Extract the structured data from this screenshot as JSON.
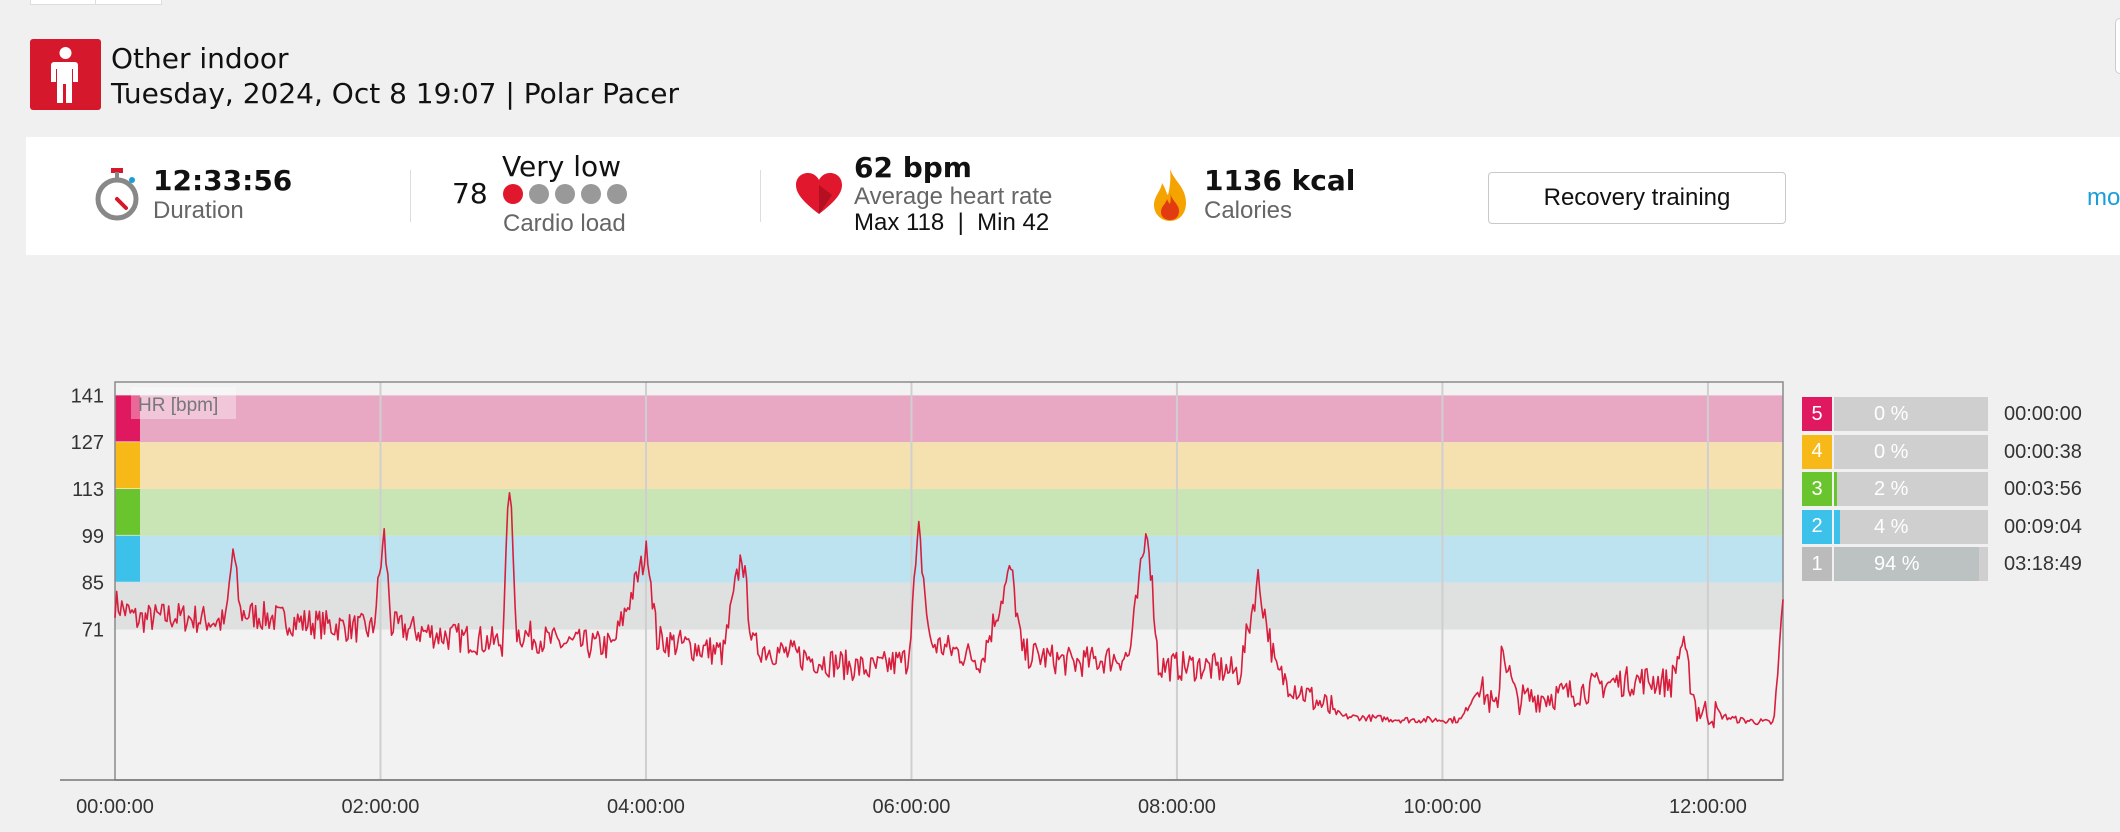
{
  "header": {
    "sport": "Other indoor",
    "subtitle": "Tuesday, 2024, Oct 8 19:07 | Polar Pacer",
    "sport_icon": "person-standing-icon"
  },
  "summary": {
    "duration": {
      "value": "12:33:56",
      "label": "Duration",
      "icon": "stopwatch-icon"
    },
    "cardio": {
      "value": "78",
      "level": "Very low",
      "label": "Cardio load",
      "filled_dots": 1,
      "total_dots": 5
    },
    "heart_rate": {
      "value": "62 bpm",
      "label": "Average heart rate",
      "minmax": "Max 118  |  Min 42",
      "icon": "heart-icon"
    },
    "calories": {
      "value": "1136 kcal",
      "label": "Calories",
      "icon": "flame-icon"
    },
    "benefit_button": "Recovery training",
    "more_link": "mo"
  },
  "colors": {
    "accent_red": "#d6182c",
    "hr_line": "#d81e3d",
    "zone5": "#e0185f",
    "zone4": "#f6b917",
    "zone3": "#6ac42e",
    "zone2": "#3bc1ea",
    "zone1": "#bbbbbb",
    "link": "#1a9ed9"
  },
  "chart_data": {
    "type": "line",
    "series_label": "HR [bpm]",
    "yticks": [
      141,
      127,
      113,
      99,
      85,
      71
    ],
    "ylim": [
      26,
      145
    ],
    "xlim_seconds": [
      0,
      45236
    ],
    "xticks": [
      {
        "s": 0,
        "label": "00:00:00"
      },
      {
        "s": 7200,
        "label": "02:00:00"
      },
      {
        "s": 14400,
        "label": "04:00:00"
      },
      {
        "s": 21600,
        "label": "06:00:00"
      },
      {
        "s": 28800,
        "label": "08:00:00"
      },
      {
        "s": 36000,
        "label": "10:00:00"
      },
      {
        "s": 43200,
        "label": "12:00:00"
      }
    ],
    "zones": [
      {
        "zone": 5,
        "from": 127,
        "to": 141,
        "band": "#e8a8c3"
      },
      {
        "zone": 4,
        "from": 113,
        "to": 127,
        "band": "#f5e0b0"
      },
      {
        "zone": 3,
        "from": 99,
        "to": 113,
        "band": "#cae5b5"
      },
      {
        "zone": 2,
        "from": 85,
        "to": 99,
        "band": "#bce3ef"
      },
      {
        "zone": 1,
        "from": 71,
        "to": 85,
        "band": "#dfe0e0"
      }
    ],
    "hr_points": [
      [
        0,
        79
      ],
      [
        600,
        74
      ],
      [
        1500,
        75
      ],
      [
        2400,
        74
      ],
      [
        3000,
        73
      ],
      [
        3200,
        95
      ],
      [
        3400,
        76
      ],
      [
        4500,
        74
      ],
      [
        6000,
        72
      ],
      [
        7000,
        71
      ],
      [
        7300,
        99
      ],
      [
        7500,
        72
      ],
      [
        9000,
        69
      ],
      [
        10500,
        67
      ],
      [
        10700,
        115
      ],
      [
        10900,
        70
      ],
      [
        12000,
        67
      ],
      [
        13500,
        66
      ],
      [
        14450,
        95
      ],
      [
        14700,
        68
      ],
      [
        16500,
        64
      ],
      [
        17000,
        94
      ],
      [
        17300,
        66
      ],
      [
        19000,
        62
      ],
      [
        20500,
        59
      ],
      [
        21500,
        62
      ],
      [
        21800,
        100
      ],
      [
        22100,
        67
      ],
      [
        23500,
        62
      ],
      [
        24300,
        89
      ],
      [
        24600,
        64
      ],
      [
        26000,
        61
      ],
      [
        27500,
        63
      ],
      [
        28000,
        102
      ],
      [
        28300,
        60
      ],
      [
        29500,
        60
      ],
      [
        30500,
        58
      ],
      [
        31000,
        86
      ],
      [
        31500,
        58
      ],
      [
        32500,
        50
      ],
      [
        33300,
        45
      ],
      [
        35000,
        44
      ],
      [
        36500,
        44
      ],
      [
        37000,
        54
      ],
      [
        37500,
        46
      ],
      [
        37600,
        67
      ],
      [
        38000,
        50
      ],
      [
        39500,
        52
      ],
      [
        40500,
        55
      ],
      [
        41500,
        56
      ],
      [
        42200,
        55
      ],
      [
        42500,
        67
      ],
      [
        42900,
        47
      ],
      [
        44000,
        44
      ],
      [
        45000,
        43
      ],
      [
        45236,
        80
      ]
    ],
    "zone_summary": [
      {
        "zone": "5",
        "pct_label": "0 %",
        "pct": 0,
        "time": "00:00:00"
      },
      {
        "zone": "4",
        "pct_label": "0 %",
        "pct": 0,
        "time": "00:00:38"
      },
      {
        "zone": "3",
        "pct_label": "2 %",
        "pct": 2,
        "time": "00:03:56"
      },
      {
        "zone": "2",
        "pct_label": "4 %",
        "pct": 4,
        "time": "00:09:04"
      },
      {
        "zone": "1",
        "pct_label": "94 %",
        "pct": 94,
        "time": "03:18:49"
      }
    ]
  }
}
